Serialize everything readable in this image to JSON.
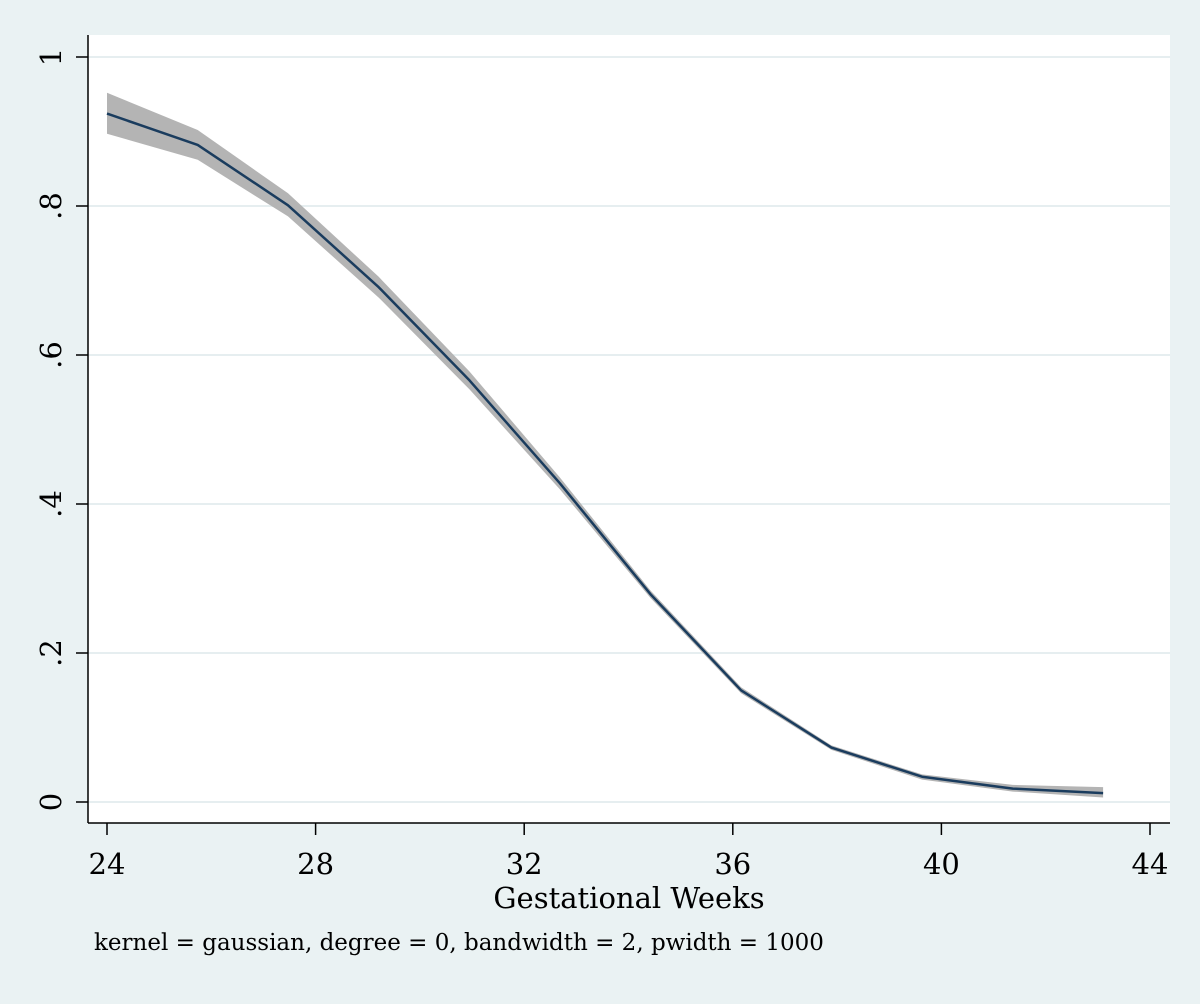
{
  "chart_data": {
    "type": "line",
    "title": "",
    "xlabel": "Gestational Weeks",
    "ylabel": "",
    "note": "kernel = gaussian, degree = 0, bandwidth = 2, pwidth = 1000",
    "xlim": [
      24,
      44
    ],
    "ylim": [
      0,
      1
    ],
    "x_ticks": [
      24,
      28,
      32,
      36,
      40,
      44
    ],
    "x_tick_labels": [
      "24",
      "28",
      "32",
      "36",
      "40",
      "44"
    ],
    "y_ticks": [
      0,
      0.2,
      0.4,
      0.6,
      0.8,
      1
    ],
    "y_tick_labels": [
      "0",
      ".2",
      ".4",
      ".6",
      ".8",
      "1"
    ],
    "grid": "horizontal",
    "series": [
      {
        "x": [
          24.0,
          25.74,
          27.47,
          29.21,
          30.95,
          32.68,
          34.42,
          36.16,
          37.89,
          39.63,
          41.37,
          43.1
        ],
        "y": [
          0.924,
          0.882,
          0.801,
          0.691,
          0.566,
          0.428,
          0.279,
          0.15,
          0.073,
          0.034,
          0.018,
          0.012
        ],
        "ci_upper": [
          0.952,
          0.902,
          0.817,
          0.705,
          0.578,
          0.436,
          0.284,
          0.154,
          0.076,
          0.037,
          0.023,
          0.02
        ],
        "ci_lower": [
          0.897,
          0.862,
          0.786,
          0.677,
          0.554,
          0.42,
          0.274,
          0.146,
          0.07,
          0.03,
          0.014,
          0.006
        ],
        "line_color": "#1a3c5e",
        "band_color": "#b4b4b4"
      }
    ]
  }
}
